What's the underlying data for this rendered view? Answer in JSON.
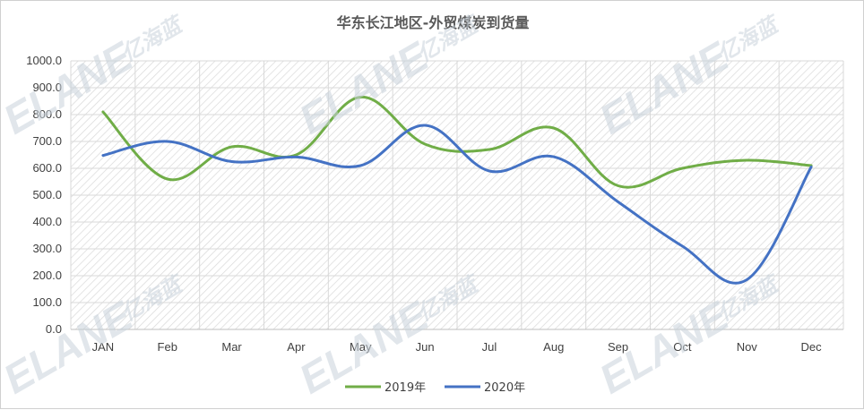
{
  "chart_data": {
    "type": "line",
    "title": "华东长江地区-外贸煤炭到货量",
    "categories": [
      "JAN",
      "Feb",
      "Mar",
      "Apr",
      "May",
      "Jun",
      "Jul",
      "Aug",
      "Sep",
      "Oct",
      "Nov",
      "Dec"
    ],
    "ylim": [
      0,
      1000
    ],
    "yticks": [
      "0.0",
      "100.0",
      "200.0",
      "300.0",
      "400.0",
      "500.0",
      "600.0",
      "700.0",
      "800.0",
      "900.0",
      "1000.0"
    ],
    "grid": true,
    "legend_position": "bottom",
    "series": [
      {
        "name": "2019年",
        "color": "#70ad47",
        "values": [
          810,
          560,
          680,
          650,
          865,
          690,
          670,
          750,
          535,
          600,
          630,
          610
        ]
      },
      {
        "name": "2020年",
        "color": "#4472c4",
        "values": [
          648,
          700,
          625,
          642,
          610,
          760,
          590,
          643,
          475,
          310,
          185,
          605
        ]
      }
    ]
  },
  "watermark": {
    "brand": "ELANE",
    "cn": "亿海蓝"
  }
}
